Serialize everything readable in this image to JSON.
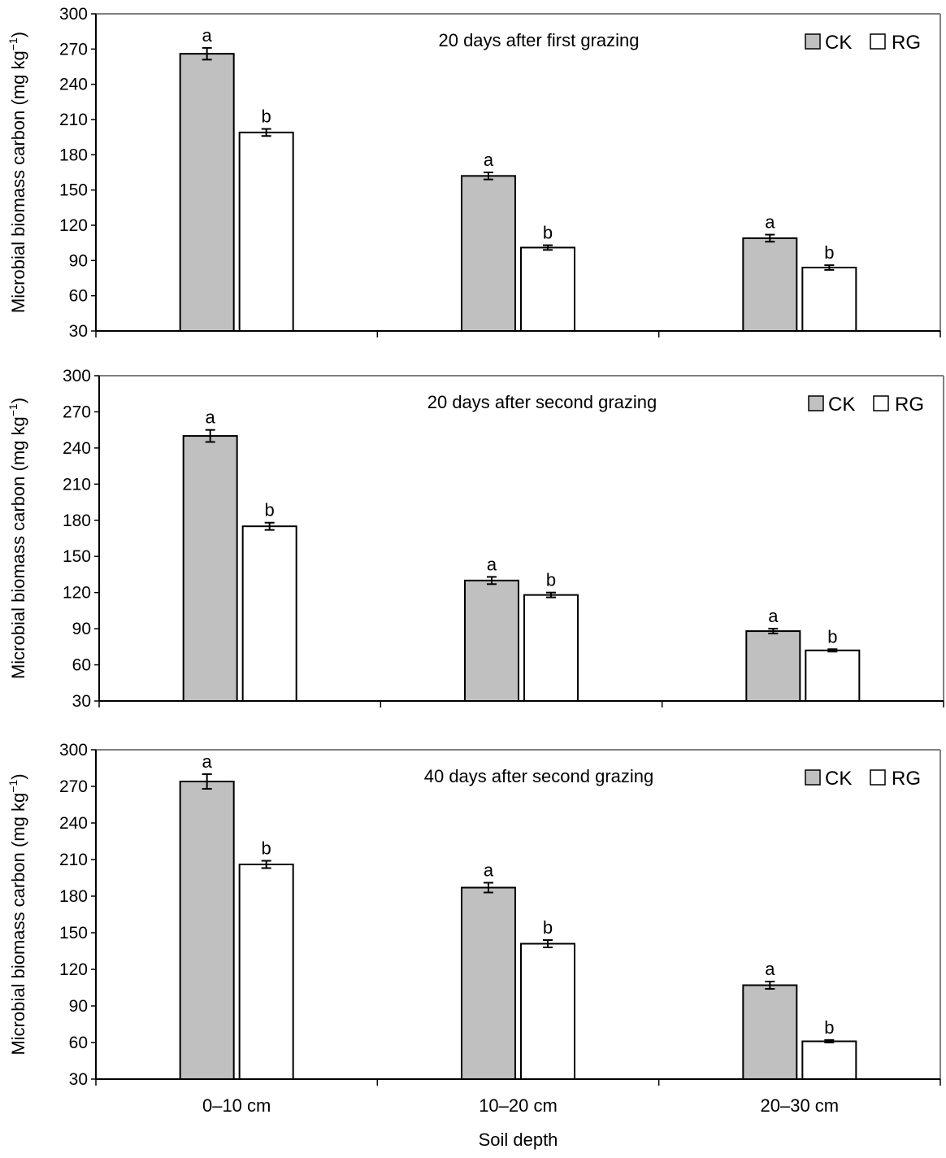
{
  "colors": {
    "CK": "#c0c0c0",
    "RG": "#ffffff",
    "stroke": "#000000",
    "frame": "#808080"
  },
  "chart_data": [
    {
      "type": "bar",
      "title": "20 days after first grazing",
      "categories": [
        "0–10 cm",
        "10–20 cm",
        "20–30 cm"
      ],
      "ylabel": "Microbial biomass carbon (mg kg",
      "ylabel_sup": "−1",
      "ylabel_close": ")",
      "xlabel": "",
      "ylim": [
        30,
        300
      ],
      "yticks": [
        30,
        60,
        90,
        120,
        150,
        180,
        210,
        240,
        270,
        300
      ],
      "grid": false,
      "legend_position": "top-right",
      "series": [
        {
          "name": "CK",
          "values": [
            266,
            162,
            109
          ],
          "errors": [
            5,
            3,
            3
          ],
          "labels": [
            "a",
            "a",
            "a"
          ]
        },
        {
          "name": "RG",
          "values": [
            199,
            101,
            84
          ],
          "errors": [
            3,
            2,
            2
          ],
          "labels": [
            "b",
            "b",
            "b"
          ]
        }
      ]
    },
    {
      "type": "bar",
      "title": "20 days after second grazing",
      "categories": [
        "0–10 cm",
        "10–20 cm",
        "20–30 cm"
      ],
      "ylabel": "Microbial biomass carbon (mg kg",
      "ylabel_sup": "−1",
      "ylabel_close": ")",
      "xlabel": "",
      "ylim": [
        30,
        300
      ],
      "yticks": [
        30,
        60,
        90,
        120,
        150,
        180,
        210,
        240,
        270,
        300
      ],
      "grid": false,
      "legend_position": "top-right",
      "series": [
        {
          "name": "CK",
          "values": [
            250,
            130,
            88
          ],
          "errors": [
            5,
            3,
            2
          ],
          "labels": [
            "a",
            "a",
            "a"
          ]
        },
        {
          "name": "RG",
          "values": [
            175,
            118,
            72
          ],
          "errors": [
            3,
            2,
            1
          ],
          "labels": [
            "b",
            "b",
            "b"
          ]
        }
      ]
    },
    {
      "type": "bar",
      "title": "40 days after second grazing",
      "categories": [
        "0–10 cm",
        "10–20 cm",
        "20–30 cm"
      ],
      "ylabel": "Microbial biomass carbon (mg kg",
      "ylabel_sup": "−1",
      "ylabel_close": ")",
      "xlabel": "Soil depth",
      "ylim": [
        30,
        300
      ],
      "yticks": [
        30,
        60,
        90,
        120,
        150,
        180,
        210,
        240,
        270,
        300
      ],
      "grid": false,
      "legend_position": "top-right",
      "series": [
        {
          "name": "CK",
          "values": [
            274,
            187,
            107
          ],
          "errors": [
            6,
            4,
            3
          ],
          "labels": [
            "a",
            "a",
            "a"
          ]
        },
        {
          "name": "RG",
          "values": [
            206,
            141,
            61
          ],
          "errors": [
            3,
            3,
            1
          ],
          "labels": [
            "b",
            "b",
            "b"
          ]
        }
      ]
    }
  ]
}
